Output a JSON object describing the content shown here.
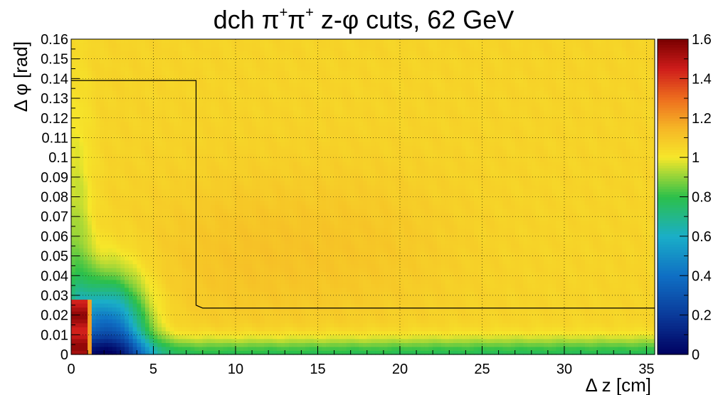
{
  "chart_data": {
    "type": "heatmap",
    "title": {
      "base": "dch ",
      "pi": "π",
      "plus": "+",
      "mid": "  z-",
      "phi": "φ",
      "rest": " cuts, 62 GeV"
    },
    "xlabel": {
      "symbol": "Δ",
      "text": "z [cm]"
    },
    "ylabel": {
      "symbol": "Δ",
      "phi": "φ",
      "text": "[rad]"
    },
    "xlim": [
      0,
      35.5
    ],
    "ylim": [
      0,
      0.16
    ],
    "zlim": [
      0,
      1.6
    ],
    "grid": true,
    "x_ticks": [
      {
        "value": 0,
        "label": "0"
      },
      {
        "value": 5,
        "label": "5"
      },
      {
        "value": 10,
        "label": "10"
      },
      {
        "value": 15,
        "label": "15"
      },
      {
        "value": 20,
        "label": "20"
      },
      {
        "value": 25,
        "label": "25"
      },
      {
        "value": 30,
        "label": "30"
      },
      {
        "value": 35,
        "label": "35"
      }
    ],
    "y_ticks": [
      {
        "value": 0,
        "label": "0"
      },
      {
        "value": 0.01,
        "label": "0.01"
      },
      {
        "value": 0.02,
        "label": "0.02"
      },
      {
        "value": 0.03,
        "label": "0.03"
      },
      {
        "value": 0.04,
        "label": "0.04"
      },
      {
        "value": 0.05,
        "label": "0.05"
      },
      {
        "value": 0.06,
        "label": "0.06"
      },
      {
        "value": 0.07,
        "label": "0.07"
      },
      {
        "value": 0.08,
        "label": "0.08"
      },
      {
        "value": 0.09,
        "label": "0.09"
      },
      {
        "value": 0.1,
        "label": "0.1"
      },
      {
        "value": 0.11,
        "label": "0.11"
      },
      {
        "value": 0.12,
        "label": "0.12"
      },
      {
        "value": 0.13,
        "label": "0.13"
      },
      {
        "value": 0.14,
        "label": "0.14"
      },
      {
        "value": 0.15,
        "label": "0.15"
      },
      {
        "value": 0.16,
        "label": "0.16"
      }
    ],
    "z_ticks": [
      {
        "value": 0,
        "label": "0"
      },
      {
        "value": 0.2,
        "label": "0.2"
      },
      {
        "value": 0.4,
        "label": "0.4"
      },
      {
        "value": 0.6,
        "label": "0.6"
      },
      {
        "value": 0.8,
        "label": "0.8"
      },
      {
        "value": 1.0,
        "label": "1"
      },
      {
        "value": 1.2,
        "label": "1.2"
      },
      {
        "value": 1.4,
        "label": "1.4"
      },
      {
        "value": 1.6,
        "label": "1.6"
      }
    ],
    "colormap": [
      {
        "v": 0.0,
        "color": "#000060"
      },
      {
        "v": 0.2,
        "color": "#0a3a9a"
      },
      {
        "v": 0.4,
        "color": "#0f6fc4"
      },
      {
        "v": 0.6,
        "color": "#1aaec8"
      },
      {
        "v": 0.8,
        "color": "#2cc04a"
      },
      {
        "v": 1.0,
        "color": "#f6e72a"
      },
      {
        "v": 1.15,
        "color": "#f6b626"
      },
      {
        "v": 1.3,
        "color": "#ed6d1e"
      },
      {
        "v": 1.45,
        "color": "#cf1d1b"
      },
      {
        "v": 1.6,
        "color": "#7a0000"
      }
    ],
    "cut_boundary": [
      {
        "x": 0,
        "y": 0.139
      },
      {
        "x": 7.6,
        "y": 0.139
      },
      {
        "x": 7.6,
        "y": 0.025
      },
      {
        "x": 8.0,
        "y": 0.0235
      },
      {
        "x": 35.5,
        "y": 0.0235
      }
    ],
    "cell_grid": {
      "nx": 142,
      "ny": 80
    }
  }
}
